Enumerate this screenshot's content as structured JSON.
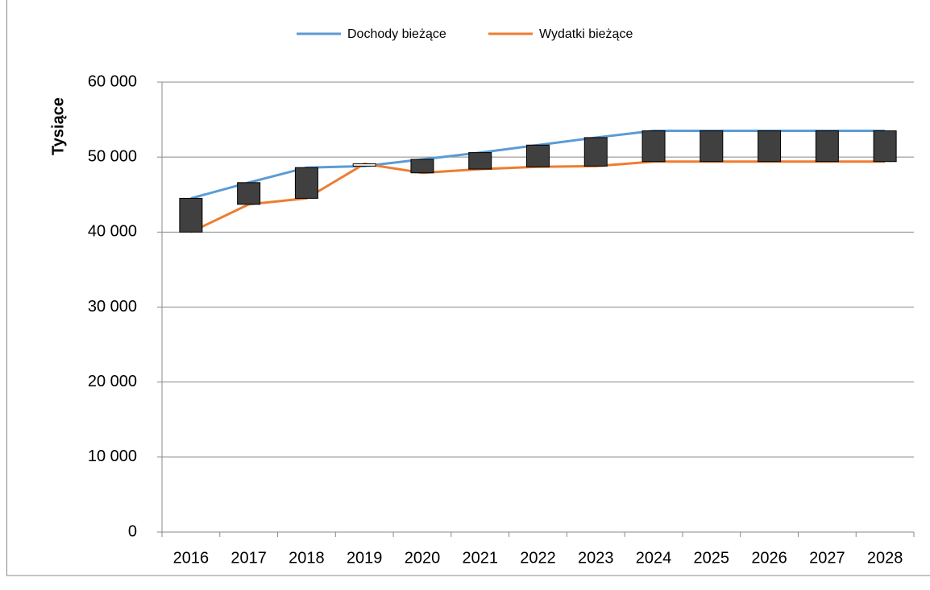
{
  "chart_data": {
    "type": "line",
    "y_label": "Tysiące",
    "categories": [
      "2016",
      "2017",
      "2018",
      "2019",
      "2020",
      "2021",
      "2022",
      "2023",
      "2024",
      "2025",
      "2026",
      "2027",
      "2028"
    ],
    "series": [
      {
        "name": "Dochody bieżące",
        "color": "#5b9bd5",
        "values": [
          44500,
          46600,
          48600,
          48800,
          49700,
          50600,
          51600,
          52600,
          53500,
          53500,
          53500,
          53500,
          53500
        ]
      },
      {
        "name": "Wydatki bieżące",
        "color": "#ed7d31",
        "values": [
          40000,
          43700,
          44500,
          49100,
          47900,
          48400,
          48700,
          48800,
          49400,
          49400,
          49400,
          49400,
          49400
        ]
      }
    ],
    "up_down_bars": true,
    "up_bar_color": "#ffffff",
    "down_bar_color": "#404040",
    "ylim": [
      0,
      60000
    ],
    "yticks": [
      0,
      {
        "value": 10000,
        "label": "10 000"
      },
      {
        "value": 20000,
        "label": "20 000"
      },
      {
        "value": 30000,
        "label": "30 000"
      },
      {
        "value": 40000,
        "label": "40 000"
      },
      {
        "value": 50000,
        "label": "50 000"
      },
      {
        "value": 60000,
        "label": "60 000"
      }
    ],
    "grid": true,
    "legend": "top"
  }
}
